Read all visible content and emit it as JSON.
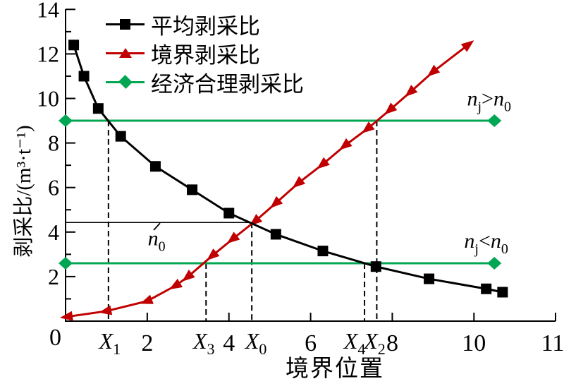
{
  "chart_data": {
    "type": "line",
    "title": "",
    "xlabel": "境界位置",
    "ylabel": "剥采比/(m³·t⁻¹)",
    "xlim": [
      0,
      12
    ],
    "ylim": [
      0,
      14
    ],
    "x_ticks": [
      2,
      4,
      6,
      8,
      10
    ],
    "x_axis_end_label": "11",
    "x_origin_label": "0",
    "y_ticks": [
      2,
      4,
      6,
      8,
      10,
      12,
      14
    ],
    "grid": false,
    "legend_position": "upper-left",
    "legend": [
      {
        "label": "平均剥采比",
        "marker": "square",
        "color": "#000000"
      },
      {
        "label": "境界剥采比",
        "marker": "triangle",
        "color": "#c00000"
      },
      {
        "label": "经济合理剥采比",
        "marker": "diamond",
        "color": "#00a651"
      }
    ],
    "series": [
      {
        "name": "平均剥采比",
        "marker": "square",
        "color": "#000000",
        "points": [
          [
            0.2,
            12.4
          ],
          [
            0.45,
            11.0
          ],
          [
            0.8,
            9.55
          ],
          [
            1.35,
            8.3
          ],
          [
            2.2,
            6.95
          ],
          [
            3.1,
            5.9
          ],
          [
            4.0,
            4.85
          ],
          [
            5.15,
            3.9
          ],
          [
            6.3,
            3.15
          ],
          [
            7.6,
            2.45
          ],
          [
            8.9,
            1.9
          ],
          [
            10.3,
            1.45
          ],
          [
            10.7,
            1.3
          ]
        ]
      },
      {
        "name": "境界剥采比",
        "marker": "triangle-arrow",
        "color": "#c00000",
        "points": [
          [
            0.05,
            0.2
          ],
          [
            1.0,
            0.45
          ],
          [
            2.0,
            0.9
          ],
          [
            2.7,
            1.6
          ],
          [
            3.0,
            2.0
          ],
          [
            3.6,
            2.95
          ],
          [
            4.1,
            3.7
          ],
          [
            4.65,
            4.5
          ],
          [
            5.15,
            5.3
          ],
          [
            5.7,
            6.2
          ],
          [
            6.3,
            7.05
          ],
          [
            6.85,
            7.9
          ],
          [
            7.4,
            8.65
          ],
          [
            7.95,
            9.5
          ],
          [
            8.45,
            10.3
          ],
          [
            9.0,
            11.2
          ],
          [
            9.85,
            12.4
          ]
        ]
      }
    ],
    "economic_lines": [
      {
        "name": "经济合理剥采比-上限",
        "y": 9.0,
        "x_start": 0,
        "x_end": 10.5,
        "color": "#00a651"
      },
      {
        "name": "经济合理剥采比-下限",
        "y": 2.6,
        "x_start": 0,
        "x_end": 10.5,
        "color": "#00a651"
      }
    ],
    "reference_line": {
      "y": 4.43,
      "x_start": 0,
      "x_end": 4.56
    },
    "dashed_verticals": [
      {
        "label_base": "X",
        "label_sub": "1",
        "x": 1.05,
        "y_top": 9.0
      },
      {
        "label_base": "X",
        "label_sub": "3",
        "x": 3.44,
        "y_top": 2.6
      },
      {
        "label_base": "X",
        "label_sub": "0",
        "x": 4.56,
        "y_top": 4.43
      },
      {
        "label_base": "X",
        "label_sub": "4",
        "x": 7.32,
        "y_top": 2.6
      },
      {
        "label_base": "X",
        "label_sub": "2",
        "x": 7.62,
        "y_top": 9.0
      }
    ],
    "annotations": [
      {
        "name": "nj-gt-n0",
        "x": 10.37,
        "y": 10.0,
        "parts": [
          {
            "t": "n",
            "italic": true
          },
          {
            "t": "j",
            "sub": true
          },
          {
            "t": ">"
          },
          {
            "t": "n",
            "italic": true
          },
          {
            "t": "0",
            "sub": true
          }
        ]
      },
      {
        "name": "nj-lt-n0",
        "x": 10.3,
        "y": 3.62,
        "parts": [
          {
            "t": "n",
            "italic": true
          },
          {
            "t": "j",
            "sub": true
          },
          {
            "t": "<"
          },
          {
            "t": "n",
            "italic": true
          },
          {
            "t": "0",
            "sub": true
          }
        ]
      },
      {
        "name": "n0-label",
        "x": 2.23,
        "y": 3.72,
        "parts": [
          {
            "t": "n",
            "italic": true
          },
          {
            "t": "0",
            "sub": true
          }
        ]
      }
    ]
  }
}
